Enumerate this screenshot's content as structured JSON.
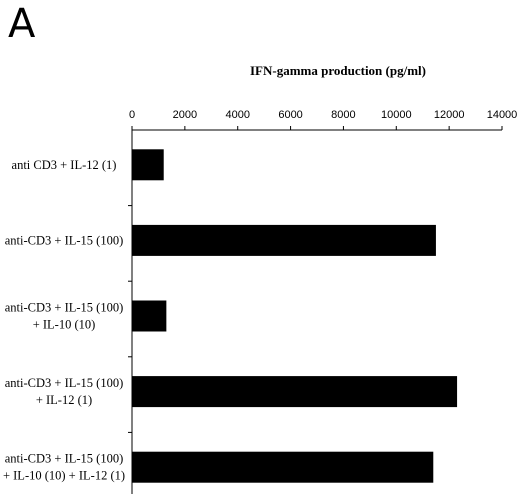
{
  "panel_letter": "A",
  "chart_data": {
    "type": "bar",
    "orientation": "horizontal",
    "title": "IFN-gamma production (pg/ml)",
    "categories": [
      [
        "anti CD3 + IL-12 (1)"
      ],
      [
        "anti-CD3 + IL-15 (100)"
      ],
      [
        "anti-CD3 + IL-15 (100)",
        "+ IL-10 (10)"
      ],
      [
        "anti-CD3 + IL-15 (100)",
        "+ IL-12 (1)"
      ],
      [
        "anti-CD3 + IL-15 (100)",
        "+ IL-10 (10) + IL-12 (1)"
      ]
    ],
    "values": [
      1200,
      11500,
      1300,
      12300,
      11400
    ],
    "xlim": [
      0,
      14000
    ],
    "xticks": [
      0,
      2000,
      4000,
      6000,
      8000,
      10000,
      12000,
      14000
    ],
    "xaxis_position": "top",
    "bar_color": "#000000",
    "grid": false
  }
}
